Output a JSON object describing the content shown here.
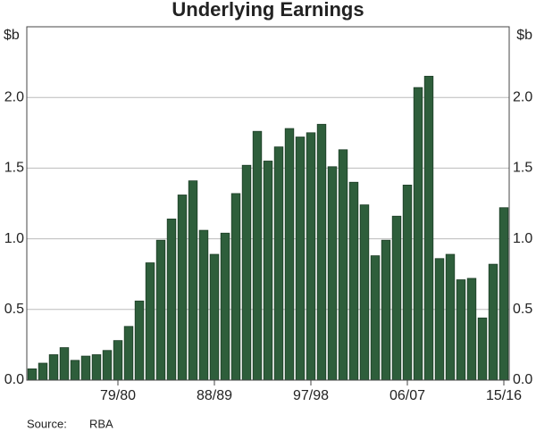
{
  "chart_data": {
    "type": "bar",
    "title": "Underlying Earnings",
    "y_unit": "$b",
    "categories": [
      null,
      null,
      null,
      null,
      null,
      null,
      null,
      null,
      "79/80",
      null,
      null,
      null,
      null,
      null,
      null,
      null,
      null,
      "88/89",
      null,
      null,
      null,
      null,
      null,
      null,
      null,
      null,
      "97/98",
      null,
      null,
      null,
      null,
      null,
      null,
      null,
      null,
      "06/07",
      null,
      null,
      null,
      null,
      null,
      null,
      null,
      null,
      "15/16"
    ],
    "values": [
      0.08,
      0.12,
      0.18,
      0.23,
      0.14,
      0.17,
      0.18,
      0.21,
      0.28,
      0.38,
      0.56,
      0.83,
      0.99,
      1.14,
      1.31,
      1.41,
      1.06,
      0.89,
      1.04,
      1.32,
      1.52,
      1.76,
      1.55,
      1.65,
      1.78,
      1.72,
      1.75,
      1.81,
      1.51,
      1.63,
      1.4,
      1.24,
      0.88,
      0.99,
      1.16,
      1.38,
      2.07,
      2.15,
      0.86,
      0.89,
      0.71,
      0.72,
      0.44,
      0.82,
      1.22
    ],
    "color": "#2e5e3b",
    "ylim": [
      0,
      2.5
    ],
    "yticks": [
      {
        "value": 0,
        "label": "0.0"
      },
      0.5,
      {
        "value": 1,
        "label": "1.0"
      },
      1.5,
      {
        "value": 2,
        "label": "2.0"
      }
    ],
    "grid": true,
    "source_label": "Source:",
    "source": "RBA"
  }
}
